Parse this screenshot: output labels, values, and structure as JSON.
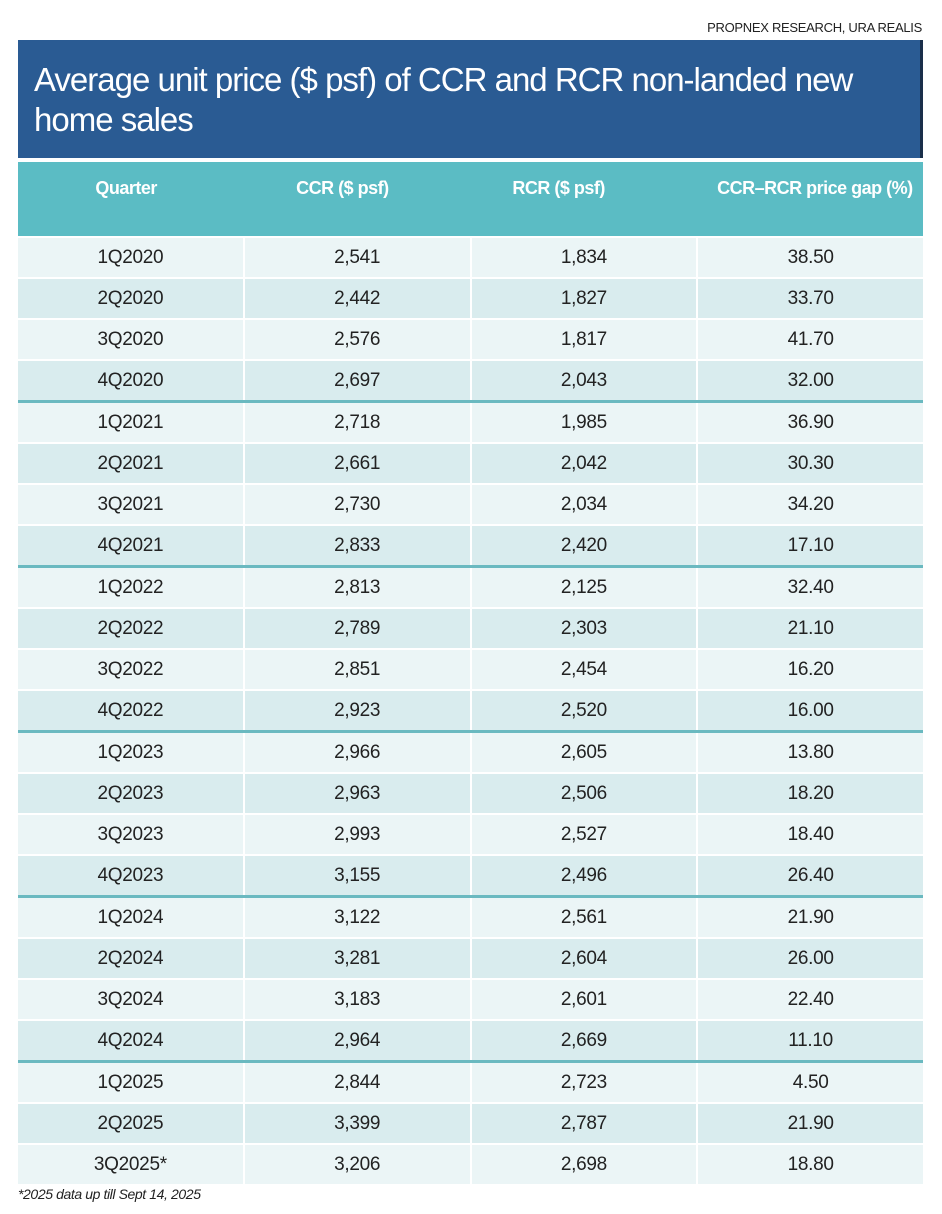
{
  "source": "PROPNEX RESEARCH, URA REALIS",
  "chart_data": {
    "type": "table",
    "title": "Average unit price ($ psf) of CCR and RCR non-landed new home sales",
    "columns": [
      "Quarter",
      "CCR  ($ psf)",
      "RCR ($ psf)",
      "CCR–RCR price gap (%)"
    ],
    "rows": [
      [
        "1Q2020",
        "2,541",
        "1,834",
        "38.50"
      ],
      [
        "2Q2020",
        "2,442",
        "1,827",
        "33.70"
      ],
      [
        "3Q2020",
        "2,576",
        "1,817",
        "41.70"
      ],
      [
        "4Q2020",
        "2,697",
        "2,043",
        "32.00"
      ],
      [
        "1Q2021",
        "2,718",
        "1,985",
        "36.90"
      ],
      [
        "2Q2021",
        "2,661",
        "2,042",
        "30.30"
      ],
      [
        "3Q2021",
        "2,730",
        "2,034",
        "34.20"
      ],
      [
        "4Q2021",
        "2,833",
        "2,420",
        "17.10"
      ],
      [
        "1Q2022",
        "2,813",
        "2,125",
        "32.40"
      ],
      [
        "2Q2022",
        "2,789",
        "2,303",
        "21.10"
      ],
      [
        "3Q2022",
        "2,851",
        "2,454",
        "16.20"
      ],
      [
        "4Q2022",
        "2,923",
        "2,520",
        "16.00"
      ],
      [
        "1Q2023",
        "2,966",
        "2,605",
        "13.80"
      ],
      [
        "2Q2023",
        "2,963",
        "2,506",
        "18.20"
      ],
      [
        "3Q2023",
        "2,993",
        "2,527",
        "18.40"
      ],
      [
        "4Q2023",
        "3,155",
        "2,496",
        "26.40"
      ],
      [
        "1Q2024",
        "3,122",
        "2,561",
        "21.90"
      ],
      [
        "2Q2024",
        "3,281",
        "2,604",
        "26.00"
      ],
      [
        "3Q2024",
        "3,183",
        "2,601",
        "22.40"
      ],
      [
        "4Q2024",
        "2,964",
        "2,669",
        "11.10"
      ],
      [
        "1Q2025",
        "2,844",
        "2,723",
        "4.50"
      ],
      [
        "2Q2025",
        "3,399",
        "2,787",
        "21.90"
      ],
      [
        "3Q2025*",
        "3,206",
        "2,698",
        "18.80"
      ]
    ],
    "footnote": "*2025 data up till Sept 14, 2025"
  },
  "colors": {
    "title_bg": "#2a5b93",
    "header_bg": "#5bbcc4",
    "row_light": "#ebf5f6",
    "row_dark": "#d9ecee",
    "year_separator": "#6ab9c0"
  }
}
